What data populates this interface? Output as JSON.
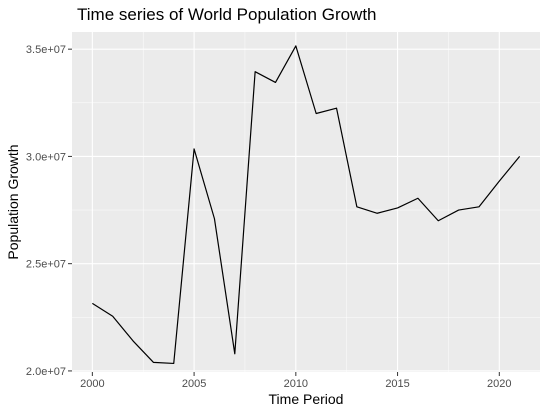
{
  "chart_data": {
    "type": "line",
    "title": "Time series of World Population Growth",
    "xlabel": "Time Period",
    "ylabel": "Population Growth",
    "x": [
      2000,
      2001,
      2002,
      2003,
      2004,
      2005,
      2006,
      2007,
      2008,
      2009,
      2010,
      2011,
      2012,
      2013,
      2014,
      2015,
      2016,
      2017,
      2018,
      2019,
      2020,
      2021
    ],
    "series": [
      {
        "values": [
          23150000,
          22550000,
          21400000,
          20400000,
          20350000,
          30350000,
          27100000,
          20800000,
          33950000,
          33450000,
          35150000,
          32000000,
          32250000,
          27650000,
          27350000,
          27600000,
          28050000,
          27000000,
          27500000,
          27650000,
          28850000,
          30000000
        ],
        "color": "#000000"
      }
    ],
    "xlim": [
      1999,
      2022
    ],
    "ylim": [
      19950000,
      35800000
    ],
    "xticks": [
      2000,
      2005,
      2010,
      2015,
      2020
    ],
    "xtick_labels": [
      "2000",
      "2005",
      "2010",
      "2015",
      "2020"
    ],
    "yticks": [
      20000000,
      25000000,
      30000000,
      35000000
    ],
    "ytick_labels": [
      "2.0e+07",
      "2.5e+07",
      "3.0e+07",
      "3.5e+07"
    ],
    "grid": true,
    "panel_background": "#ebebeb"
  }
}
